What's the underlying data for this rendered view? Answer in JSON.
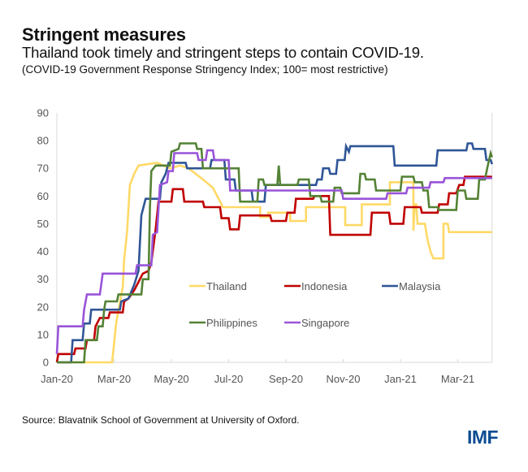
{
  "header": {
    "title": "Stringent measures",
    "subtitle": "Thailand took timely and stringent steps to contain COVID-19.",
    "note": "(COVID-19 Government Response Stringency Index; 100= most restrictive)"
  },
  "footer": {
    "source": "Source: Blavatnik School of Government at University of Oxford.",
    "logo": "IMF"
  },
  "chart_data": {
    "type": "line",
    "title": "Stringent measures",
    "xlabel": "",
    "ylabel": "",
    "x_unit": "months since Jan 1, 2020",
    "xlim": [
      0,
      15.2
    ],
    "ylim": [
      0,
      90
    ],
    "yticks": [
      0,
      10,
      20,
      30,
      40,
      50,
      60,
      70,
      80,
      90
    ],
    "xticks": [
      {
        "label": "Jan-20",
        "m": 0
      },
      {
        "label": "Mar-20",
        "m": 2
      },
      {
        "label": "May-20",
        "m": 4
      },
      {
        "label": "Jul-20",
        "m": 6
      },
      {
        "label": "Sep-20",
        "m": 8
      },
      {
        "label": "Nov-20",
        "m": 10
      },
      {
        "label": "Jan-21",
        "m": 12
      },
      {
        "label": "Mar-21",
        "m": 14
      }
    ],
    "grid": false,
    "legend": "center-inside",
    "step": true,
    "series": [
      {
        "name": "Thailand",
        "color": "#ffd966",
        "points": [
          [
            0,
            0
          ],
          [
            1.93,
            0
          ],
          [
            1.98,
            5
          ],
          [
            2.07,
            14
          ],
          [
            2.15,
            19
          ],
          [
            2.3,
            27
          ],
          [
            2.35,
            37
          ],
          [
            2.45,
            47
          ],
          [
            2.55,
            64
          ],
          [
            2.7,
            68
          ],
          [
            2.85,
            71
          ],
          [
            3.5,
            72
          ],
          [
            3.95,
            70
          ],
          [
            4.3,
            71
          ],
          [
            4.6,
            70
          ],
          [
            5.1,
            66
          ],
          [
            5.45,
            63
          ],
          [
            5.8,
            56
          ],
          [
            7.1,
            56
          ],
          [
            7.1,
            52.5
          ],
          [
            7.38,
            52.5
          ],
          [
            7.38,
            54
          ],
          [
            8.15,
            54
          ],
          [
            8.15,
            51
          ],
          [
            8.7,
            51
          ],
          [
            8.7,
            56
          ],
          [
            10.07,
            56
          ],
          [
            10.07,
            49.5
          ],
          [
            10.65,
            49.5
          ],
          [
            10.65,
            57
          ],
          [
            11.63,
            57
          ],
          [
            11.63,
            65
          ],
          [
            12.45,
            65
          ],
          [
            12.45,
            47.5
          ],
          [
            12.5,
            57
          ],
          [
            12.55,
            57
          ],
          [
            12.6,
            50
          ],
          [
            12.85,
            50
          ],
          [
            12.95,
            44
          ],
          [
            13.05,
            40
          ],
          [
            13.15,
            37.5
          ],
          [
            13.5,
            37.5
          ],
          [
            13.5,
            50
          ],
          [
            13.65,
            50
          ],
          [
            13.7,
            47
          ],
          [
            15.2,
            47
          ]
        ]
      },
      {
        "name": "Indonesia",
        "color": "#c00000",
        "points": [
          [
            0,
            0
          ],
          [
            0.05,
            3
          ],
          [
            0.6,
            3
          ],
          [
            0.65,
            5
          ],
          [
            1.0,
            5
          ],
          [
            1.05,
            8
          ],
          [
            1.3,
            8
          ],
          [
            1.35,
            13
          ],
          [
            1.5,
            16
          ],
          [
            1.8,
            16
          ],
          [
            1.85,
            18
          ],
          [
            2.3,
            18
          ],
          [
            2.35,
            22
          ],
          [
            2.5,
            23
          ],
          [
            2.7,
            26
          ],
          [
            2.85,
            29
          ],
          [
            2.9,
            30
          ],
          [
            3.0,
            32
          ],
          [
            3.2,
            33
          ],
          [
            3.3,
            36
          ],
          [
            3.45,
            48
          ],
          [
            3.55,
            58
          ],
          [
            4.0,
            58
          ],
          [
            4.05,
            62.5
          ],
          [
            4.4,
            62.5
          ],
          [
            4.45,
            58
          ],
          [
            5.1,
            58
          ],
          [
            5.15,
            56
          ],
          [
            5.7,
            56
          ],
          [
            5.75,
            52
          ],
          [
            6.0,
            52
          ],
          [
            6.05,
            48
          ],
          [
            6.35,
            48
          ],
          [
            6.4,
            53
          ],
          [
            7.45,
            53
          ],
          [
            7.5,
            51
          ],
          [
            8.0,
            51
          ],
          [
            8.05,
            54
          ],
          [
            8.3,
            54
          ],
          [
            8.35,
            59
          ],
          [
            8.95,
            59
          ],
          [
            9.0,
            60
          ],
          [
            9.5,
            60
          ],
          [
            9.55,
            46
          ],
          [
            10.95,
            46
          ],
          [
            11.0,
            54
          ],
          [
            11.6,
            54
          ],
          [
            11.65,
            50
          ],
          [
            12.1,
            50
          ],
          [
            12.15,
            56
          ],
          [
            12.7,
            56
          ],
          [
            12.75,
            54
          ],
          [
            13.3,
            54
          ],
          [
            13.35,
            57
          ],
          [
            13.65,
            57
          ],
          [
            13.7,
            61
          ],
          [
            13.95,
            61
          ],
          [
            14.05,
            64
          ],
          [
            14.2,
            64
          ],
          [
            14.25,
            67
          ],
          [
            15.2,
            67
          ]
        ]
      },
      {
        "name": "Malaysia",
        "color": "#2f5597",
        "points": [
          [
            0,
            0
          ],
          [
            0.5,
            0
          ],
          [
            0.55,
            8
          ],
          [
            0.9,
            8
          ],
          [
            0.95,
            14
          ],
          [
            1.15,
            14
          ],
          [
            1.2,
            19
          ],
          [
            2.2,
            19
          ],
          [
            2.25,
            22
          ],
          [
            2.5,
            23
          ],
          [
            2.7,
            28
          ],
          [
            2.85,
            33
          ],
          [
            2.95,
            53
          ],
          [
            3.05,
            57
          ],
          [
            3.1,
            59
          ],
          [
            3.6,
            59
          ],
          [
            3.65,
            65
          ],
          [
            3.8,
            68
          ],
          [
            3.9,
            72
          ],
          [
            4.5,
            72
          ],
          [
            4.55,
            70
          ],
          [
            5.35,
            70
          ],
          [
            5.4,
            73
          ],
          [
            5.85,
            73
          ],
          [
            5.9,
            66
          ],
          [
            6.2,
            66
          ],
          [
            6.25,
            62
          ],
          [
            6.8,
            62
          ],
          [
            6.85,
            58
          ],
          [
            7.25,
            58
          ],
          [
            7.3,
            64
          ],
          [
            9.05,
            64
          ],
          [
            9.1,
            66
          ],
          [
            9.25,
            66
          ],
          [
            9.3,
            70
          ],
          [
            9.5,
            70
          ],
          [
            9.55,
            68
          ],
          [
            9.75,
            68
          ],
          [
            9.8,
            73
          ],
          [
            10.05,
            73
          ],
          [
            10.1,
            78
          ],
          [
            10.2,
            76
          ],
          [
            10.25,
            78
          ],
          [
            11.75,
            78
          ],
          [
            11.8,
            71
          ],
          [
            13.25,
            71
          ],
          [
            13.3,
            76.5
          ],
          [
            14.3,
            76.5
          ],
          [
            14.35,
            79
          ],
          [
            14.5,
            79
          ],
          [
            14.55,
            77
          ],
          [
            14.95,
            77
          ],
          [
            15.0,
            73
          ],
          [
            15.15,
            73
          ],
          [
            15.2,
            71.5
          ]
        ]
      },
      {
        "name": "Philippines",
        "color": "#548235",
        "points": [
          [
            0,
            0
          ],
          [
            0.95,
            0
          ],
          [
            1.0,
            8
          ],
          [
            1.4,
            8
          ],
          [
            1.45,
            13
          ],
          [
            1.6,
            13
          ],
          [
            1.65,
            19
          ],
          [
            1.7,
            22
          ],
          [
            2.1,
            22
          ],
          [
            2.15,
            24.5
          ],
          [
            2.95,
            24.5
          ],
          [
            3.0,
            30
          ],
          [
            3.2,
            30
          ],
          [
            3.25,
            56
          ],
          [
            3.3,
            69
          ],
          [
            3.45,
            71
          ],
          [
            3.95,
            71
          ],
          [
            4.0,
            76
          ],
          [
            4.25,
            77
          ],
          [
            4.3,
            79
          ],
          [
            4.85,
            79
          ],
          [
            4.9,
            77
          ],
          [
            5.05,
            77
          ],
          [
            5.1,
            70
          ],
          [
            6.35,
            70
          ],
          [
            6.4,
            58
          ],
          [
            7.0,
            58
          ],
          [
            7.05,
            66
          ],
          [
            7.2,
            66
          ],
          [
            7.25,
            64
          ],
          [
            7.7,
            64
          ],
          [
            7.75,
            71
          ],
          [
            7.8,
            64
          ],
          [
            8.4,
            64
          ],
          [
            8.45,
            66
          ],
          [
            8.8,
            66
          ],
          [
            8.85,
            60
          ],
          [
            9.2,
            60
          ],
          [
            9.25,
            58
          ],
          [
            9.65,
            58
          ],
          [
            9.7,
            63
          ],
          [
            9.9,
            63
          ],
          [
            9.95,
            61
          ],
          [
            10.55,
            61
          ],
          [
            10.6,
            68
          ],
          [
            10.75,
            68
          ],
          [
            10.8,
            66
          ],
          [
            11.1,
            66
          ],
          [
            11.15,
            62
          ],
          [
            12.0,
            62
          ],
          [
            12.05,
            67
          ],
          [
            12.45,
            67
          ],
          [
            12.5,
            65
          ],
          [
            12.75,
            65
          ],
          [
            12.8,
            62
          ],
          [
            12.95,
            62
          ],
          [
            13.0,
            56
          ],
          [
            13.3,
            56
          ],
          [
            13.35,
            55
          ],
          [
            13.95,
            55
          ],
          [
            14.0,
            62
          ],
          [
            14.25,
            62
          ],
          [
            14.3,
            59
          ],
          [
            14.7,
            59
          ],
          [
            14.75,
            66
          ],
          [
            14.95,
            66
          ],
          [
            15.05,
            71
          ],
          [
            15.15,
            75.5
          ],
          [
            15.2,
            74
          ]
        ]
      },
      {
        "name": "Singapore",
        "color": "#9954d9",
        "points": [
          [
            0,
            3
          ],
          [
            0.05,
            13
          ],
          [
            0.9,
            13
          ],
          [
            0.95,
            19
          ],
          [
            1.05,
            24.5
          ],
          [
            1.5,
            24.5
          ],
          [
            1.55,
            28
          ],
          [
            1.6,
            32
          ],
          [
            2.75,
            32
          ],
          [
            2.8,
            35
          ],
          [
            3.3,
            35
          ],
          [
            3.35,
            46
          ],
          [
            3.5,
            47
          ],
          [
            3.6,
            64
          ],
          [
            3.85,
            65
          ],
          [
            3.9,
            69
          ],
          [
            4.05,
            69
          ],
          [
            4.1,
            75.5
          ],
          [
            4.9,
            75.5
          ],
          [
            4.95,
            73
          ],
          [
            5.2,
            73
          ],
          [
            5.25,
            76.5
          ],
          [
            5.45,
            76.5
          ],
          [
            5.5,
            73
          ],
          [
            6.0,
            73
          ],
          [
            6.05,
            62
          ],
          [
            9.95,
            62
          ],
          [
            10.0,
            59
          ],
          [
            11.5,
            59
          ],
          [
            11.55,
            61
          ],
          [
            12.2,
            61
          ],
          [
            12.25,
            63
          ],
          [
            13.0,
            63
          ],
          [
            13.05,
            65
          ],
          [
            13.5,
            65
          ],
          [
            13.55,
            66.5
          ],
          [
            15.2,
            66.5
          ]
        ]
      }
    ]
  }
}
